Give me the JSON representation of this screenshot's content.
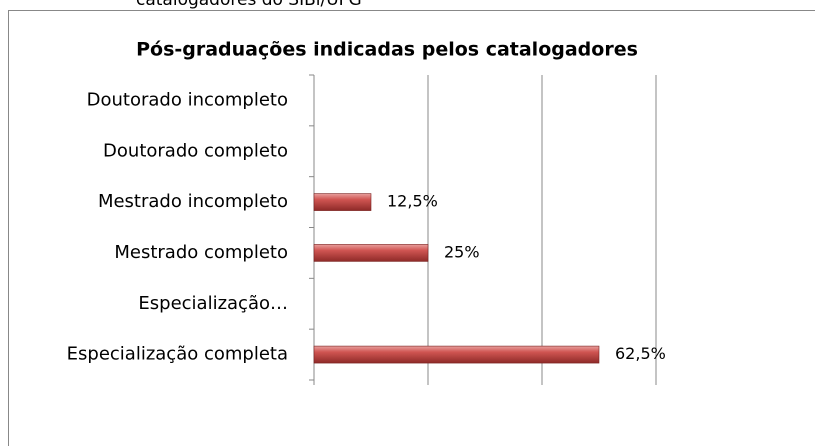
{
  "caption": "catalogadores do SIBi/UFG",
  "chart_data": {
    "type": "bar",
    "orientation": "horizontal",
    "title": "Pós-graduações indicadas pelos catalogadores",
    "categories": [
      "Doutorado incompleto",
      "Doutorado completo",
      "Mestrado incompleto",
      "Mestrado completo",
      "Especialização…",
      "Especialização completa"
    ],
    "values": [
      0,
      0,
      12.5,
      25,
      0,
      62.5
    ],
    "value_labels": [
      null,
      null,
      "12,5%",
      "25%",
      null,
      "62,5%"
    ],
    "color": "#c0504d",
    "xlim": [
      0,
      75
    ],
    "xticks": [
      0,
      25,
      50,
      75
    ],
    "grid": true
  }
}
